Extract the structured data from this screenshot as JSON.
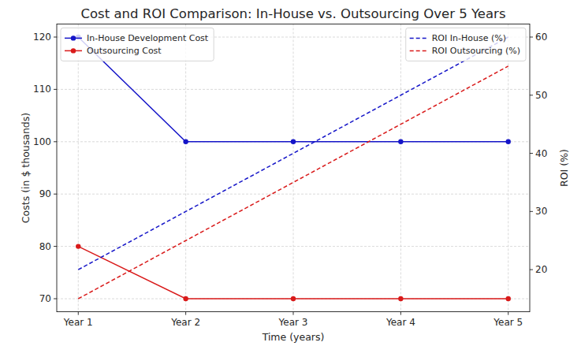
{
  "chart_data": {
    "type": "line",
    "title": "Cost and ROI Comparison: In-House vs. Outsourcing Over 5 Years",
    "x_label": "Time (years)",
    "y_label": "Costs (in $ thousands)",
    "y2_label": "ROI (%)",
    "categories": [
      "Year 1",
      "Year 2",
      "Year 3",
      "Year 4",
      "Year 5"
    ],
    "series": [
      {
        "name": "In-House Development Cost",
        "color": "#1515c8",
        "marker": "circle",
        "line_style": "solid",
        "values": [
          120,
          100,
          100,
          100,
          100
        ]
      },
      {
        "name": "Outsourcing Cost",
        "color": "#d91a1a",
        "marker": "circle",
        "line_style": "solid",
        "values": [
          80,
          70,
          70,
          70,
          70
        ]
      },
      {
        "name": "ROI In-House (%)",
        "color": "#1515c8",
        "line_style": "dashed",
        "axis": "y2",
        "values": [
          20,
          30,
          40,
          50,
          60
        ]
      },
      {
        "name": "ROI Outsourcing (%)",
        "color": "#d91a1a",
        "line_style": "dashed",
        "axis": "y2",
        "values": [
          15,
          25,
          35,
          45,
          55
        ]
      }
    ],
    "ylim": [
      67.5,
      122.5
    ],
    "yticks": [
      70,
      80,
      90,
      100,
      110,
      120
    ],
    "y2lim": [
      12.75,
      62.25
    ],
    "y2ticks": [
      20,
      30,
      40,
      50,
      60
    ],
    "grid": true,
    "legend": "upper left"
  }
}
